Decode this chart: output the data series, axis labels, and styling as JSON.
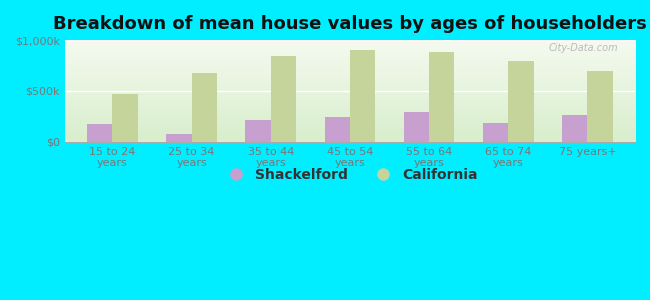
{
  "title": "Breakdown of mean house values by ages of householders",
  "categories": [
    "15 to 24\nyears",
    "25 to 34\nyears",
    "35 to 44\nyears",
    "45 to 54\nyears",
    "55 to 64\nyears",
    "65 to 74\nyears",
    "75 years+"
  ],
  "shackelford": [
    180000,
    80000,
    210000,
    240000,
    290000,
    185000,
    265000
  ],
  "california": [
    470000,
    680000,
    840000,
    900000,
    880000,
    790000,
    700000
  ],
  "shackelford_color": "#c8a0d0",
  "california_color": "#c5d49a",
  "background_outer": "#00eeff",
  "background_inner_top": "#f5faf0",
  "background_inner_bottom": "#d8eecc",
  "ylim": [
    0,
    1000000
  ],
  "yticks": [
    0,
    500000,
    1000000
  ],
  "ytick_labels": [
    "$0",
    "$500k",
    "$1,000k"
  ],
  "legend_labels": [
    "Shackelford",
    "California"
  ],
  "bar_width": 0.32,
  "title_fontsize": 13,
  "tick_fontsize": 8,
  "legend_fontsize": 10,
  "axis_label_color": "#777777",
  "grid_color": "#ffffff"
}
